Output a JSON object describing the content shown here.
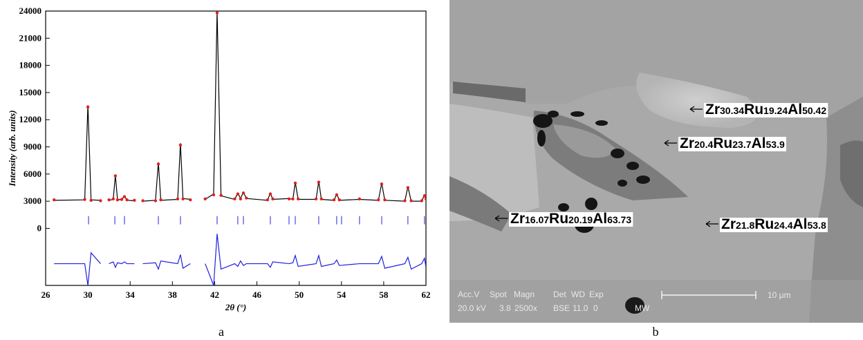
{
  "chart_data": {
    "type": "line",
    "x_label": "2θ (°)",
    "y_label": "Intensity (arb. units)",
    "xlim": [
      26,
      62
    ],
    "xticks": [
      26,
      30,
      34,
      38,
      42,
      46,
      50,
      54,
      58,
      62
    ],
    "ylim": [
      -6300,
      24000
    ],
    "yticks": [
      0,
      3000,
      6000,
      9000,
      12000,
      15000,
      18000,
      21000,
      24000
    ],
    "x": [
      26.8,
      29.7,
      30.0,
      30.3,
      31.2,
      31.6,
      32.0,
      32.4,
      32.6,
      32.8,
      33.2,
      33.46,
      33.7,
      34.4,
      34.8,
      35.2,
      36.4,
      36.67,
      36.9,
      38.5,
      38.76,
      39.0,
      39.7,
      40.4,
      41.1,
      41.9,
      42.23,
      42.6,
      43.9,
      44.19,
      44.45,
      44.72,
      45.0,
      47.0,
      47.27,
      47.5,
      49.04,
      49.4,
      49.63,
      49.9,
      51.6,
      51.85,
      52.1,
      53.3,
      53.55,
      53.8,
      55.71,
      57.5,
      57.81,
      58.1,
      60.0,
      60.29,
      60.6,
      61.6,
      61.86,
      62.0
    ],
    "series": [
      {
        "style": "line",
        "color": "#000000",
        "values": [
          3100,
          3150,
          13600,
          3150,
          3100,
          null,
          3100,
          3200,
          5900,
          3200,
          3150,
          3600,
          3100,
          3050,
          null,
          3000,
          3100,
          7300,
          3100,
          3200,
          9400,
          3300,
          3200,
          null,
          3200,
          3800,
          24000,
          3600,
          3200,
          3900,
          3300,
          4000,
          3300,
          3100,
          3900,
          3200,
          3300,
          3200,
          5100,
          3200,
          3200,
          5200,
          3200,
          3100,
          3800,
          3100,
          3200,
          3100,
          5000,
          3100,
          3000,
          4600,
          3000,
          3000,
          3700,
          3200
        ]
      },
      {
        "style": "dots",
        "color": "#e0201b",
        "values": [
          3150,
          3200,
          13400,
          3100,
          3050,
          null,
          3150,
          3250,
          5800,
          3150,
          3200,
          3500,
          3150,
          3100,
          null,
          3050,
          3050,
          7100,
          3150,
          3250,
          9200,
          3250,
          3150,
          null,
          3250,
          3700,
          23800,
          3650,
          3250,
          3800,
          3250,
          3900,
          3350,
          3150,
          3800,
          3250,
          3250,
          3250,
          5000,
          3250,
          3250,
          5100,
          3250,
          3150,
          3700,
          3150,
          3250,
          3150,
          4900,
          3150,
          3050,
          4500,
          3050,
          3050,
          3600,
          3250
        ]
      },
      {
        "style": "line",
        "color": "#1f1fdd",
        "values": [
          -3900,
          -3900,
          -6300,
          -2700,
          -3900,
          null,
          -3900,
          -3700,
          -4300,
          -3800,
          -3900,
          -3700,
          -3900,
          -3900,
          null,
          -3900,
          -3800,
          -4500,
          -3600,
          -3900,
          -2900,
          -4400,
          -3900,
          null,
          -3900,
          -6300,
          -600,
          -4500,
          -3900,
          -4200,
          -3600,
          -4100,
          -3900,
          -3900,
          -4300,
          -3700,
          -3900,
          -3800,
          -3000,
          -4200,
          -3900,
          -3000,
          -4200,
          -3900,
          -3500,
          -4100,
          -3900,
          -3900,
          -3100,
          -4400,
          -3900,
          -3200,
          -4500,
          -3900,
          -3300,
          -4300
        ]
      }
    ],
    "bragg": {
      "color": "#1f1fdd",
      "level": 900,
      "positions": [
        30.06,
        32.55,
        33.46,
        36.67,
        38.76,
        42.23,
        44.19,
        44.72,
        47.27,
        49.04,
        49.63,
        51.85,
        53.55,
        54.01,
        55.71,
        57.81,
        60.29,
        61.86
      ]
    }
  },
  "panel_a_caption": "a",
  "image": {
    "labels": [
      {
        "parts": [
          [
            "Zr",
            "30.34"
          ],
          [
            "Ru",
            "19.24"
          ],
          [
            "Al",
            "50.42"
          ]
        ]
      },
      {
        "parts": [
          [
            "Zr",
            "20.4"
          ],
          [
            "Ru",
            "23.7"
          ],
          [
            "Al",
            "53.9"
          ]
        ]
      },
      {
        "parts": [
          [
            "Zr",
            "16.07"
          ],
          [
            "Ru",
            "20.19"
          ],
          [
            "Al",
            "63.73"
          ]
        ]
      },
      {
        "parts": [
          [
            "Zr",
            "21.8"
          ],
          [
            "Ru",
            "24.4"
          ],
          [
            "Al",
            "53.8"
          ]
        ]
      }
    ],
    "info_header": [
      "Acc.V",
      "Spot",
      "Magn",
      "Det",
      "WD",
      "Exp"
    ],
    "info_values": [
      "20.0 kV",
      "3.8",
      "2500x",
      "BSE",
      "11.0",
      "0",
      "MW"
    ],
    "scale_label": "10 μm"
  },
  "panel_b_caption": "b"
}
